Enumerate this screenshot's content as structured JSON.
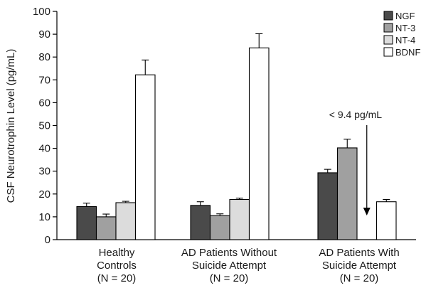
{
  "chart_data": {
    "type": "bar",
    "title": "",
    "ylabel": "CSF Neurotrophin Level (pg/mL)",
    "xlabel": "",
    "ylim": [
      0,
      100
    ],
    "yticks": [
      0,
      10,
      20,
      30,
      40,
      50,
      60,
      70,
      80,
      90,
      100
    ],
    "grid": false,
    "legend_position": "top-right",
    "categories": [
      [
        "Healthy",
        "Controls",
        "(N = 20)"
      ],
      [
        "AD Patients Without",
        "Suicide Attempt",
        "(N = 20)"
      ],
      [
        "AD Patients With",
        "Suicide Attempt",
        "(N = 20)"
      ]
    ],
    "series": [
      {
        "name": "NGF",
        "color": "#4a4a4a",
        "values": [
          14.5,
          15.0,
          29.3
        ],
        "errors": [
          1.5,
          1.6,
          1.5
        ]
      },
      {
        "name": "NT-3",
        "color": "#a0a0a0",
        "values": [
          10.0,
          10.5,
          40.2
        ],
        "errors": [
          1.2,
          0.8,
          3.8
        ]
      },
      {
        "name": "NT-4",
        "color": "#dcdcdc",
        "values": [
          16.2,
          17.6,
          null
        ],
        "errors": [
          0.6,
          0.6,
          null
        ]
      },
      {
        "name": "BDNF",
        "color": "#ffffff",
        "values": [
          72.2,
          84.0,
          16.6
        ],
        "errors": [
          6.5,
          6.2,
          1.0
        ]
      }
    ],
    "annotation": {
      "text": "< 9.4 pg/mL",
      "category_index": 2,
      "series_index": 2,
      "arrow": "down"
    }
  }
}
